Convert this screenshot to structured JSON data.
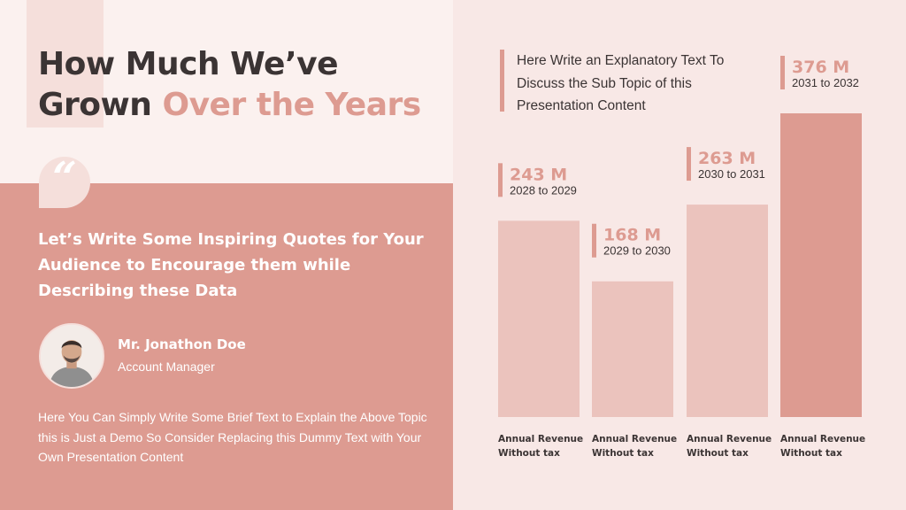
{
  "slide": {
    "title_line1": "How Much We’ve",
    "title_line2_dark": "Grown ",
    "title_line2_accent": "Over the Years",
    "quote_mark": "“",
    "quote": "Let’s Write Some Inspiring Quotes for Your Audience to Encourage them while Describing these Data",
    "person_name": "Mr. Jonathon Doe",
    "person_role": "Account Manager",
    "body_text": "Here You Can Simply Write Some Brief Text to Explain the Above Topic this is Just a Demo So Consider Replacing this Dummy Text with Your Own Presentation Content",
    "explanatory_text": "Here Write an Explanatory Text To Discuss the Sub Topic of this Presentation Content"
  },
  "colors": {
    "accent": "#dd9b91",
    "light_bar": "#ebc3bd",
    "dark_text": "#3b3434",
    "bg_right": "#f8e8e6"
  },
  "chart_data": {
    "type": "bar",
    "categories": [
      "Annual Revenue Without tax",
      "Annual Revenue Without tax",
      "Annual Revenue Without tax",
      "Annual Revenue Without tax"
    ],
    "category_lines": [
      [
        "Annual Revenue",
        "Without tax"
      ],
      [
        "Annual Revenue",
        "Without tax"
      ],
      [
        "Annual Revenue",
        "Without tax"
      ],
      [
        "Annual Revenue",
        "Without tax"
      ]
    ],
    "values": [
      243,
      168,
      263,
      376
    ],
    "value_labels": [
      "243 M",
      "168 M",
      "263 M",
      "376 M"
    ],
    "periods": [
      "2028 to 2029",
      "2029 to 2030",
      "2030 to 2031",
      "2031 to 2032"
    ],
    "highlight_index": 3,
    "ylim": [
      0,
      376
    ]
  }
}
